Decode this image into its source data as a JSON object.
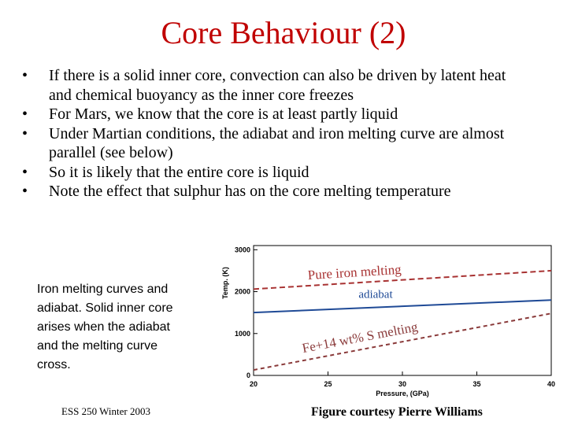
{
  "title": "Core Behaviour (2)",
  "bullets": [
    "If there is a solid inner core, convection can also be driven by latent heat and chemical buoyancy as the inner core freezes",
    "For Mars, we know that the core is at least partly liquid",
    "Under Martian conditions, the adiabat and iron melting curve are almost parallel (see below)",
    "So it is likely that the entire core is liquid",
    "Note the effect that sulphur has on the core melting temperature"
  ],
  "caption": "Iron melting curves and adiabat. Solid inner core arises when the adiabat and the melting curve cross.",
  "footer": "ESS 250 Winter 2003",
  "credit": "Figure courtesy Pierre Williams",
  "figure": {
    "type": "line",
    "ylabel": "Temp. (K)",
    "xlabel": "Pressure, (GPa)",
    "x": [
      20,
      40
    ],
    "series": [
      {
        "name": "Pure iron melting",
        "color": "#a83232",
        "values": [
          2060,
          2500
        ]
      },
      {
        "name": "adiabat",
        "color": "#1f4a96",
        "values": [
          1500,
          1800
        ]
      },
      {
        "name": "Fe+14 wt% S melting",
        "color": "#8a3a3a",
        "values": [
          130,
          1480
        ]
      }
    ],
    "xlim": [
      20,
      40
    ],
    "ylim": [
      0,
      3100
    ],
    "xticks": [
      20,
      25,
      30,
      35,
      40
    ],
    "yticks": [
      0,
      1000,
      2000,
      3000
    ]
  }
}
